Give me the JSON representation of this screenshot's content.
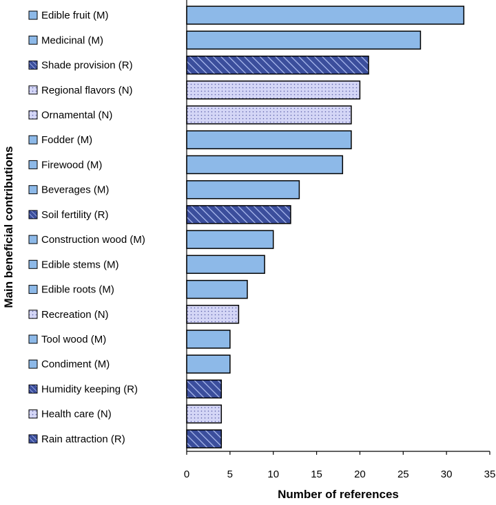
{
  "chart_data": {
    "type": "bar",
    "orientation": "horizontal",
    "title": "",
    "xlabel": "Number of references",
    "ylabel": "Main beneficial contributions",
    "xlim": [
      0,
      35
    ],
    "xticks": [
      0,
      5,
      10,
      15,
      20,
      25,
      30,
      35
    ],
    "grid": false,
    "legend": "none",
    "categories": [
      "Edible fruit (M)",
      "Medicinal (M)",
      "Shade provision (R)",
      "Regional flavors (N)",
      "Ornamental (N)",
      "Fodder (M)",
      "Firewood (M)",
      "Beverages (M)",
      "Soil fertility (R)",
      "Construction wood (M)",
      "Edible stems (M)",
      "Edible roots (M)",
      "Recreation (N)",
      "Tool wood (M)",
      "Condiment (M)",
      "Humidity keeping (R)",
      "Health care (N)",
      "Rain attraction (R)"
    ],
    "values": [
      32,
      27,
      21,
      20,
      19,
      19,
      18,
      13,
      12,
      10,
      9,
      7,
      6,
      5,
      5,
      4,
      4,
      4
    ],
    "groups": [
      "M",
      "M",
      "R",
      "N",
      "N",
      "M",
      "M",
      "M",
      "R",
      "M",
      "M",
      "M",
      "N",
      "M",
      "M",
      "R",
      "N",
      "R"
    ],
    "group_styles": {
      "M": {
        "fill": "#8db9e8",
        "pattern": "solid"
      },
      "R": {
        "fill": "#3b4e9c",
        "pattern": "diagonal-hatch"
      },
      "N": {
        "fill": "#d4d6f6",
        "pattern": "dots"
      }
    }
  }
}
